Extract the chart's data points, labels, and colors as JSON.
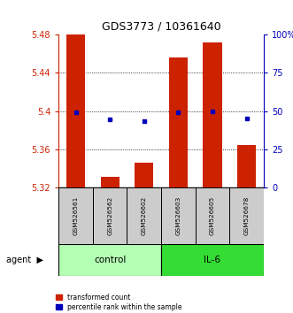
{
  "title": "GDS3773 / 10361640",
  "samples": [
    "GSM526561",
    "GSM526562",
    "GSM526602",
    "GSM526603",
    "GSM526605",
    "GSM526678"
  ],
  "bar_values": [
    5.48,
    5.331,
    5.346,
    5.456,
    5.472,
    5.365
  ],
  "bar_baseline": 5.32,
  "blue_dots_left": [
    5.399,
    5.391,
    5.39,
    5.399,
    5.4,
    5.392
  ],
  "ylim_left": [
    5.32,
    5.48
  ],
  "ylim_right": [
    0,
    100
  ],
  "yticks_left": [
    5.32,
    5.36,
    5.4,
    5.44,
    5.48
  ],
  "ytick_labels_left": [
    "5.32",
    "5.36",
    "5.4",
    "5.44",
    "5.48"
  ],
  "yticks_right": [
    0,
    25,
    50,
    75,
    100
  ],
  "ytick_labels_right": [
    "0",
    "25",
    "50",
    "75",
    "100%"
  ],
  "hlines": [
    5.36,
    5.4,
    5.44
  ],
  "groups": [
    {
      "label": "control",
      "samples": [
        0,
        1,
        2
      ],
      "color": "#b3ffb3"
    },
    {
      "label": "IL-6",
      "samples": [
        3,
        4,
        5
      ],
      "color": "#33dd33"
    }
  ],
  "bar_color": "#cc2200",
  "dot_color": "#0000bb",
  "left_axis_color": "#cc2200",
  "right_axis_color": "#0000bb",
  "sample_box_color": "#cccccc",
  "legend_items": [
    {
      "color": "#cc2200",
      "label": "transformed count"
    },
    {
      "color": "#0000bb",
      "label": "percentile rank within the sample"
    }
  ]
}
